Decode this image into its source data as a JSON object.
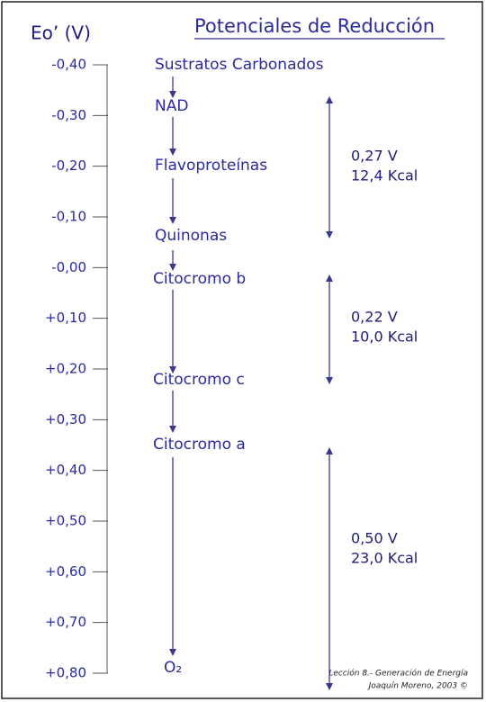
{
  "title": "Potenciales de Reducción",
  "axis_label": "Eo’ (V)",
  "axis_ticks": [
    "-0,40",
    "-0,30",
    "-0,20",
    "-0,10",
    "-0,00",
    "+0,10",
    "+0,20",
    "+0,30",
    "+0,40",
    "+0,50",
    "+0,60",
    "+0,70",
    "+0,80"
  ],
  "compounds": [
    "Sustratos Carbonados",
    "NAD",
    "Flavoproteínas",
    "Quinonas",
    "Citocromo b",
    "Citocromo c",
    "Citocromo a",
    "O₂"
  ],
  "spans": [
    {
      "voltage": "0,27 V",
      "energy": "12,4 Kcal"
    },
    {
      "voltage": "0,22 V",
      "energy": "10,0 Kcal"
    },
    {
      "voltage": "0,50 V",
      "energy": "23,0 Kcal"
    }
  ],
  "footer": [
    "Lección 8.- Generación de Energía",
    "Joaquín Moreno, 2003 ©"
  ]
}
